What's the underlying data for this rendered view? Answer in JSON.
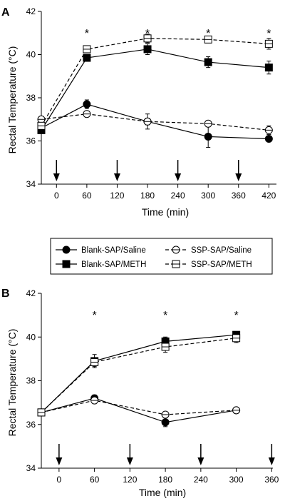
{
  "legend": {
    "items": [
      {
        "label": "Blank-SAP/Saline",
        "series": "blank_saline"
      },
      {
        "label": "SSP-SAP/Saline",
        "series": "ssp_saline"
      },
      {
        "label": "Blank-SAP/METH",
        "series": "blank_meth"
      },
      {
        "label": "SSP-SAP/METH",
        "series": "ssp_meth"
      }
    ]
  },
  "styles": {
    "blank_saline": {
      "line": "solid",
      "marker": "circle",
      "fill": "#000000"
    },
    "ssp_saline": {
      "line": "dashed",
      "marker": "circle-open",
      "fill": "#ffffff"
    },
    "blank_meth": {
      "line": "solid",
      "marker": "square",
      "fill": "#000000"
    },
    "ssp_meth": {
      "line": "dashed",
      "marker": "square-open",
      "fill": "#ffffff"
    }
  },
  "chart_data": [
    {
      "panel": "A",
      "type": "line",
      "xlabel": "Time (min)",
      "ylabel": "Rectal Temperature (°C)",
      "xlim": [
        -30,
        435
      ],
      "ylim": [
        34,
        42
      ],
      "xticks": [
        0,
        60,
        120,
        180,
        240,
        300,
        360,
        420
      ],
      "yticks": [
        34,
        36,
        38,
        40,
        42
      ],
      "arrows_at": [
        0,
        120,
        240,
        360
      ],
      "significance": [
        {
          "x": 60,
          "label": "*"
        },
        {
          "x": 180,
          "label": "*"
        },
        {
          "x": 300,
          "label": "*"
        },
        {
          "x": 420,
          "label": "*"
        }
      ],
      "series": [
        {
          "key": "blank_saline",
          "x": [
            -30,
            60,
            180,
            300,
            420
          ],
          "y": [
            36.6,
            37.7,
            36.9,
            36.2,
            36.1
          ],
          "err": [
            0.1,
            0.2,
            0.35,
            0.5,
            0.1
          ]
        },
        {
          "key": "ssp_saline",
          "x": [
            -30,
            60,
            180,
            300,
            420
          ],
          "y": [
            37.0,
            37.25,
            36.9,
            36.8,
            36.5
          ],
          "err": [
            0.1,
            0.1,
            0.15,
            0.1,
            0.2
          ]
        },
        {
          "key": "blank_meth",
          "x": [
            -30,
            60,
            180,
            300,
            420
          ],
          "y": [
            36.5,
            39.85,
            40.25,
            39.65,
            39.4
          ],
          "err": [
            0.1,
            0.1,
            0.25,
            0.25,
            0.3
          ]
        },
        {
          "key": "ssp_meth",
          "x": [
            -30,
            60,
            180,
            300,
            420
          ],
          "y": [
            36.7,
            40.25,
            40.75,
            40.7,
            40.5
          ],
          "err": [
            0.1,
            0.15,
            0.2,
            0.15,
            0.25
          ]
        }
      ]
    },
    {
      "panel": "B",
      "type": "line",
      "xlabel": "Time (min)",
      "ylabel": "Rectal Temperature (°C)",
      "xlim": [
        -30,
        362
      ],
      "ylim": [
        34,
        42
      ],
      "xticks": [
        0,
        60,
        120,
        180,
        240,
        300,
        360
      ],
      "yticks": [
        34,
        36,
        38,
        40,
        42
      ],
      "arrows_at": [
        0,
        120,
        240,
        360
      ],
      "significance": [
        {
          "x": 60,
          "label": "*"
        },
        {
          "x": 180,
          "label": "*"
        },
        {
          "x": 300,
          "label": "*"
        }
      ],
      "series": [
        {
          "key": "blank_saline",
          "x": [
            -30,
            60,
            180,
            300
          ],
          "y": [
            36.55,
            37.2,
            36.1,
            36.65
          ],
          "err": [
            0.1,
            0.15,
            0.2,
            0.1
          ]
        },
        {
          "key": "ssp_saline",
          "x": [
            -30,
            60,
            180,
            300
          ],
          "y": [
            36.55,
            37.1,
            36.45,
            36.65
          ],
          "err": [
            0.1,
            0.15,
            0.1,
            0.1
          ]
        },
        {
          "key": "blank_meth",
          "x": [
            -30,
            60,
            180,
            300
          ],
          "y": [
            36.55,
            38.9,
            39.8,
            40.1
          ],
          "err": [
            0.1,
            0.3,
            0.2,
            0.15
          ]
        },
        {
          "key": "ssp_meth",
          "x": [
            -30,
            60,
            180,
            300
          ],
          "y": [
            36.55,
            38.85,
            39.55,
            39.95
          ],
          "err": [
            0.1,
            0.2,
            0.25,
            0.2
          ]
        }
      ]
    }
  ]
}
